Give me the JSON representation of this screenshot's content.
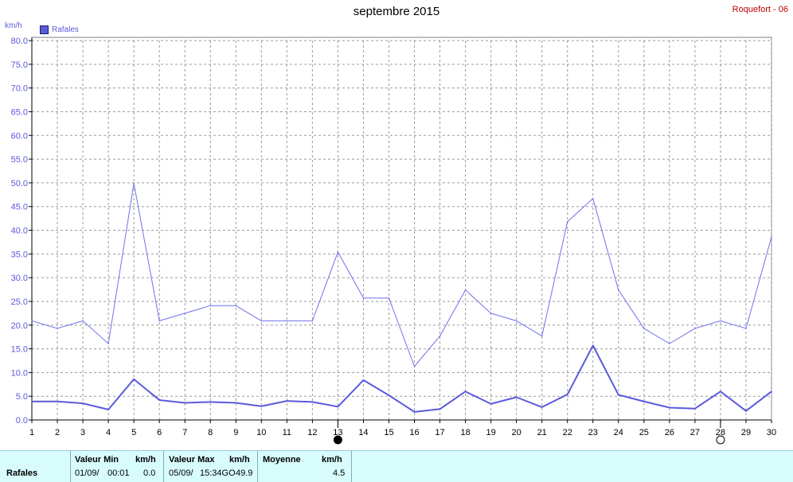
{
  "header": {
    "title": "septembre 2015",
    "station": "Roquefort - 06",
    "unit": "km/h",
    "legend_label": "Rafales"
  },
  "chart_data": {
    "type": "line",
    "x": [
      1,
      2,
      3,
      4,
      5,
      6,
      7,
      8,
      9,
      10,
      11,
      12,
      13,
      14,
      15,
      16,
      17,
      18,
      19,
      20,
      21,
      22,
      23,
      24,
      25,
      26,
      27,
      28,
      29,
      30
    ],
    "ylim": [
      0,
      80
    ],
    "ytick_labels": [
      "0.0",
      "5.0",
      "10.0",
      "15.0",
      "20.0",
      "25.0",
      "30.0",
      "35.0",
      "40.0",
      "45.0",
      "50.0",
      "55.0",
      "60.0",
      "65.0",
      "70.0",
      "75.0",
      "80.0"
    ],
    "xtick_labels": [
      "1",
      "2",
      "3",
      "4",
      "5",
      "6",
      "7",
      "8",
      "9",
      "10",
      "11",
      "12",
      "13",
      "14",
      "15",
      "16",
      "17",
      "18",
      "19",
      "20",
      "21",
      "22",
      "23",
      "24",
      "25",
      "26",
      "27",
      "28",
      "29",
      "30"
    ],
    "grid": true,
    "legend_position": "top-left",
    "series": [
      {
        "name": "Rafales",
        "color": "#7070ee",
        "values": [
          20.9,
          19.3,
          20.9,
          16.1,
          49.9,
          20.9,
          22.5,
          24.1,
          24.1,
          20.9,
          20.9,
          20.9,
          35.4,
          25.7,
          25.7,
          11.3,
          17.7,
          27.4,
          22.5,
          20.9,
          17.7,
          41.8,
          46.7,
          27.4,
          19.3,
          16.1,
          19.3,
          20.9,
          19.3,
          38.6
        ]
      },
      {
        "color": "#5a5adc",
        "values": [
          3.9,
          3.9,
          3.5,
          2.2,
          8.6,
          4.2,
          3.6,
          3.8,
          3.6,
          2.9,
          4.0,
          3.8,
          2.8,
          8.4,
          5.2,
          1.7,
          2.3,
          6.0,
          3.4,
          4.8,
          2.7,
          5.4,
          15.7,
          5.3,
          3.9,
          2.6,
          2.4,
          6.0,
          1.9,
          6.0
        ]
      }
    ],
    "moon_markers": [
      {
        "day": 13,
        "phase": "new"
      },
      {
        "day": 28,
        "phase": "full"
      }
    ]
  },
  "stats": {
    "row_label": "Rafales",
    "min_header": "Valeur Min",
    "min_unit": "km/h",
    "min_date": "01/09/",
    "min_time": "00:01",
    "min_value": "0.0",
    "max_header": "Valeur Max",
    "max_unit": "km/h",
    "max_date": "05/09/",
    "max_time": "15:34GO",
    "max_value": "49.9",
    "avg_header": "Moyenne",
    "avg_unit": "km/h",
    "avg_value": "4.5"
  }
}
